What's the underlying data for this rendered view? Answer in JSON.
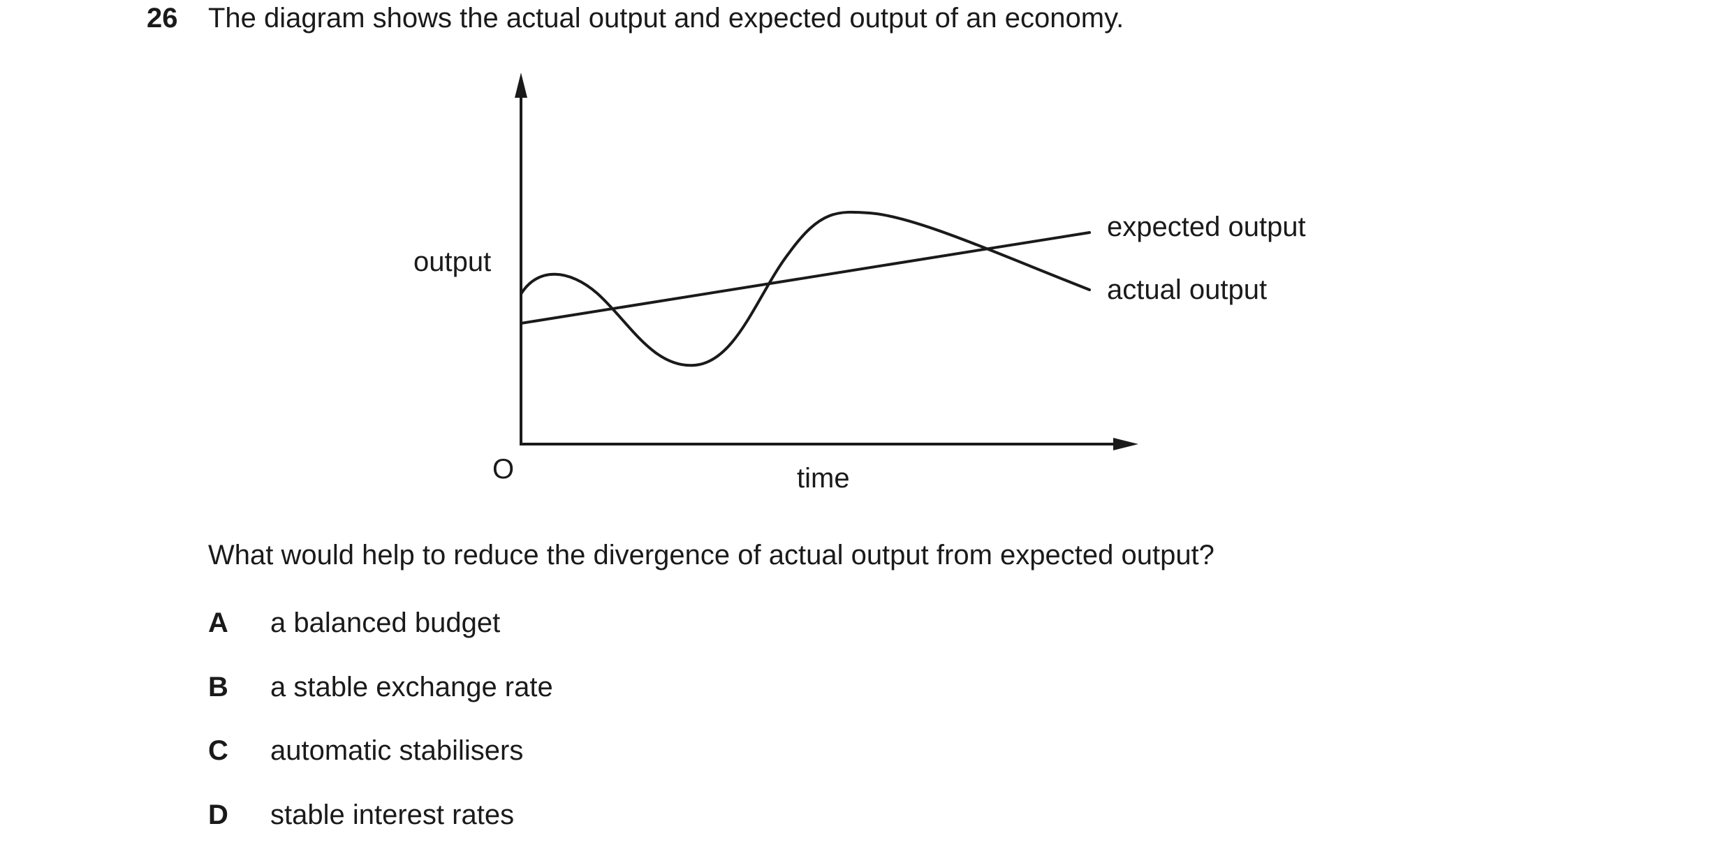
{
  "question": {
    "number": "26",
    "stem": "The diagram shows the actual output and expected output of an economy.",
    "prompt": "What would help to reduce the divergence of actual output from expected output?",
    "options": [
      {
        "letter": "A",
        "text": "a balanced budget"
      },
      {
        "letter": "B",
        "text": "a stable exchange rate"
      },
      {
        "letter": "C",
        "text": "automatic stabilisers"
      },
      {
        "letter": "D",
        "text": "stable interest rates"
      }
    ]
  },
  "diagram": {
    "y_label": "output",
    "x_label": "time",
    "origin_label": "O",
    "expected_label": "expected output",
    "actual_label": "actual output",
    "line_color": "#1a1a1a"
  }
}
